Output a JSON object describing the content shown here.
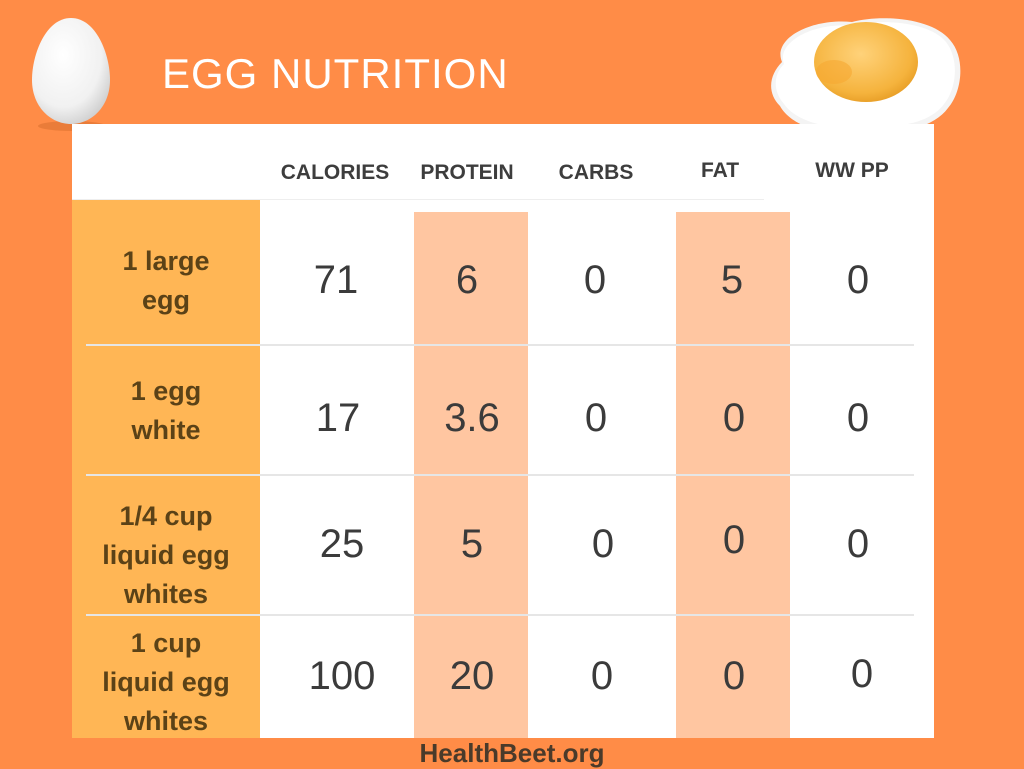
{
  "title": "EGG NUTRITION",
  "icons": {
    "left": "egg-icon",
    "right": "fried-egg-icon"
  },
  "colors": {
    "background": "#ff8c47",
    "label_column": "#ffb655",
    "highlight_column": "#ffc6a1"
  },
  "columns": [
    "CALORIES",
    "PROTEIN",
    "CARBS",
    "FAT",
    "WW PP"
  ],
  "rows": [
    {
      "label": [
        "1 large",
        "egg"
      ],
      "values": [
        "71",
        "6",
        "0",
        "5",
        "0"
      ]
    },
    {
      "label": [
        "1 egg",
        "white"
      ],
      "values": [
        "17",
        "3.6",
        "0",
        "0",
        "0"
      ]
    },
    {
      "label": [
        "1/4 cup",
        "liquid egg",
        "whites"
      ],
      "values": [
        "25",
        "5",
        "0",
        "0",
        "0"
      ]
    },
    {
      "label": [
        "1 cup",
        "liquid egg",
        "whites"
      ],
      "values": [
        "100",
        "20",
        "0",
        "0",
        "0"
      ]
    }
  ],
  "footer": "HealthBeet.org"
}
